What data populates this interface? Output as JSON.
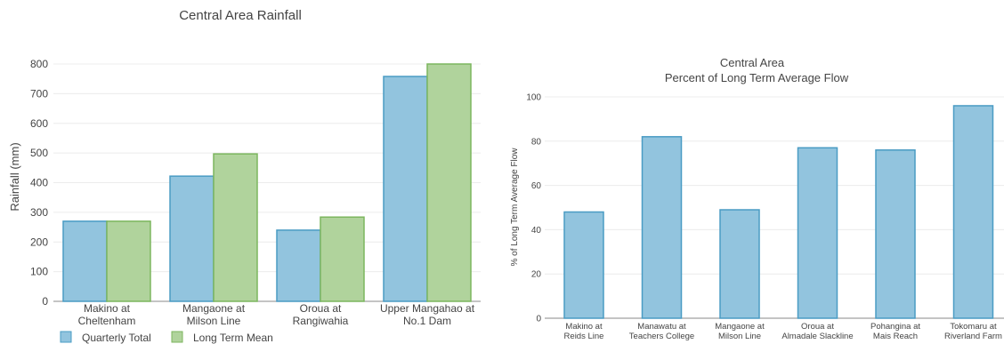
{
  "chart_data": [
    {
      "type": "bar",
      "title": "Central Area Rainfall",
      "ylabel": "Rainfall (mm)",
      "xlabel": "",
      "ylim": [
        0,
        800
      ],
      "yticks": [
        0,
        100,
        200,
        300,
        400,
        500,
        600,
        700,
        800
      ],
      "categories": [
        [
          "Makino at",
          "Cheltenham"
        ],
        [
          "Mangaone at",
          "Milson Line"
        ],
        [
          "Oroua at",
          "Rangiwahia"
        ],
        [
          "Upper Mangahao at",
          "No.1 Dam"
        ]
      ],
      "series": [
        {
          "name": "Quarterly Total",
          "values": [
            270,
            422,
            240,
            758
          ],
          "color": "#92c4de",
          "stroke": "#4a9cc4"
        },
        {
          "name": "Long Term Mean",
          "values": [
            270,
            497,
            284,
            800
          ],
          "color": "#b0d39c",
          "stroke": "#7cb65e"
        }
      ],
      "grid": true,
      "legend": "bottom-left"
    },
    {
      "type": "bar",
      "title": [
        "Central Area",
        "Percent of Long Term Average Flow"
      ],
      "ylabel": "% of Long Term Average Flow",
      "xlabel": "",
      "ylim": [
        0,
        100
      ],
      "yticks": [
        0,
        20,
        40,
        60,
        80,
        100
      ],
      "categories": [
        [
          "Makino at",
          "Reids Line"
        ],
        [
          "Manawatu at",
          "Teachers College"
        ],
        [
          "Mangaone at",
          "Milson Line"
        ],
        [
          "Oroua at",
          "Almadale Slackline"
        ],
        [
          "Pohangina at",
          "Mais Reach"
        ],
        [
          "Tokomaru at",
          "Riverland Farm"
        ]
      ],
      "values": [
        48,
        82,
        49,
        77,
        76,
        96
      ],
      "color": "#92c4de",
      "stroke": "#4a9cc4",
      "grid": true
    }
  ]
}
